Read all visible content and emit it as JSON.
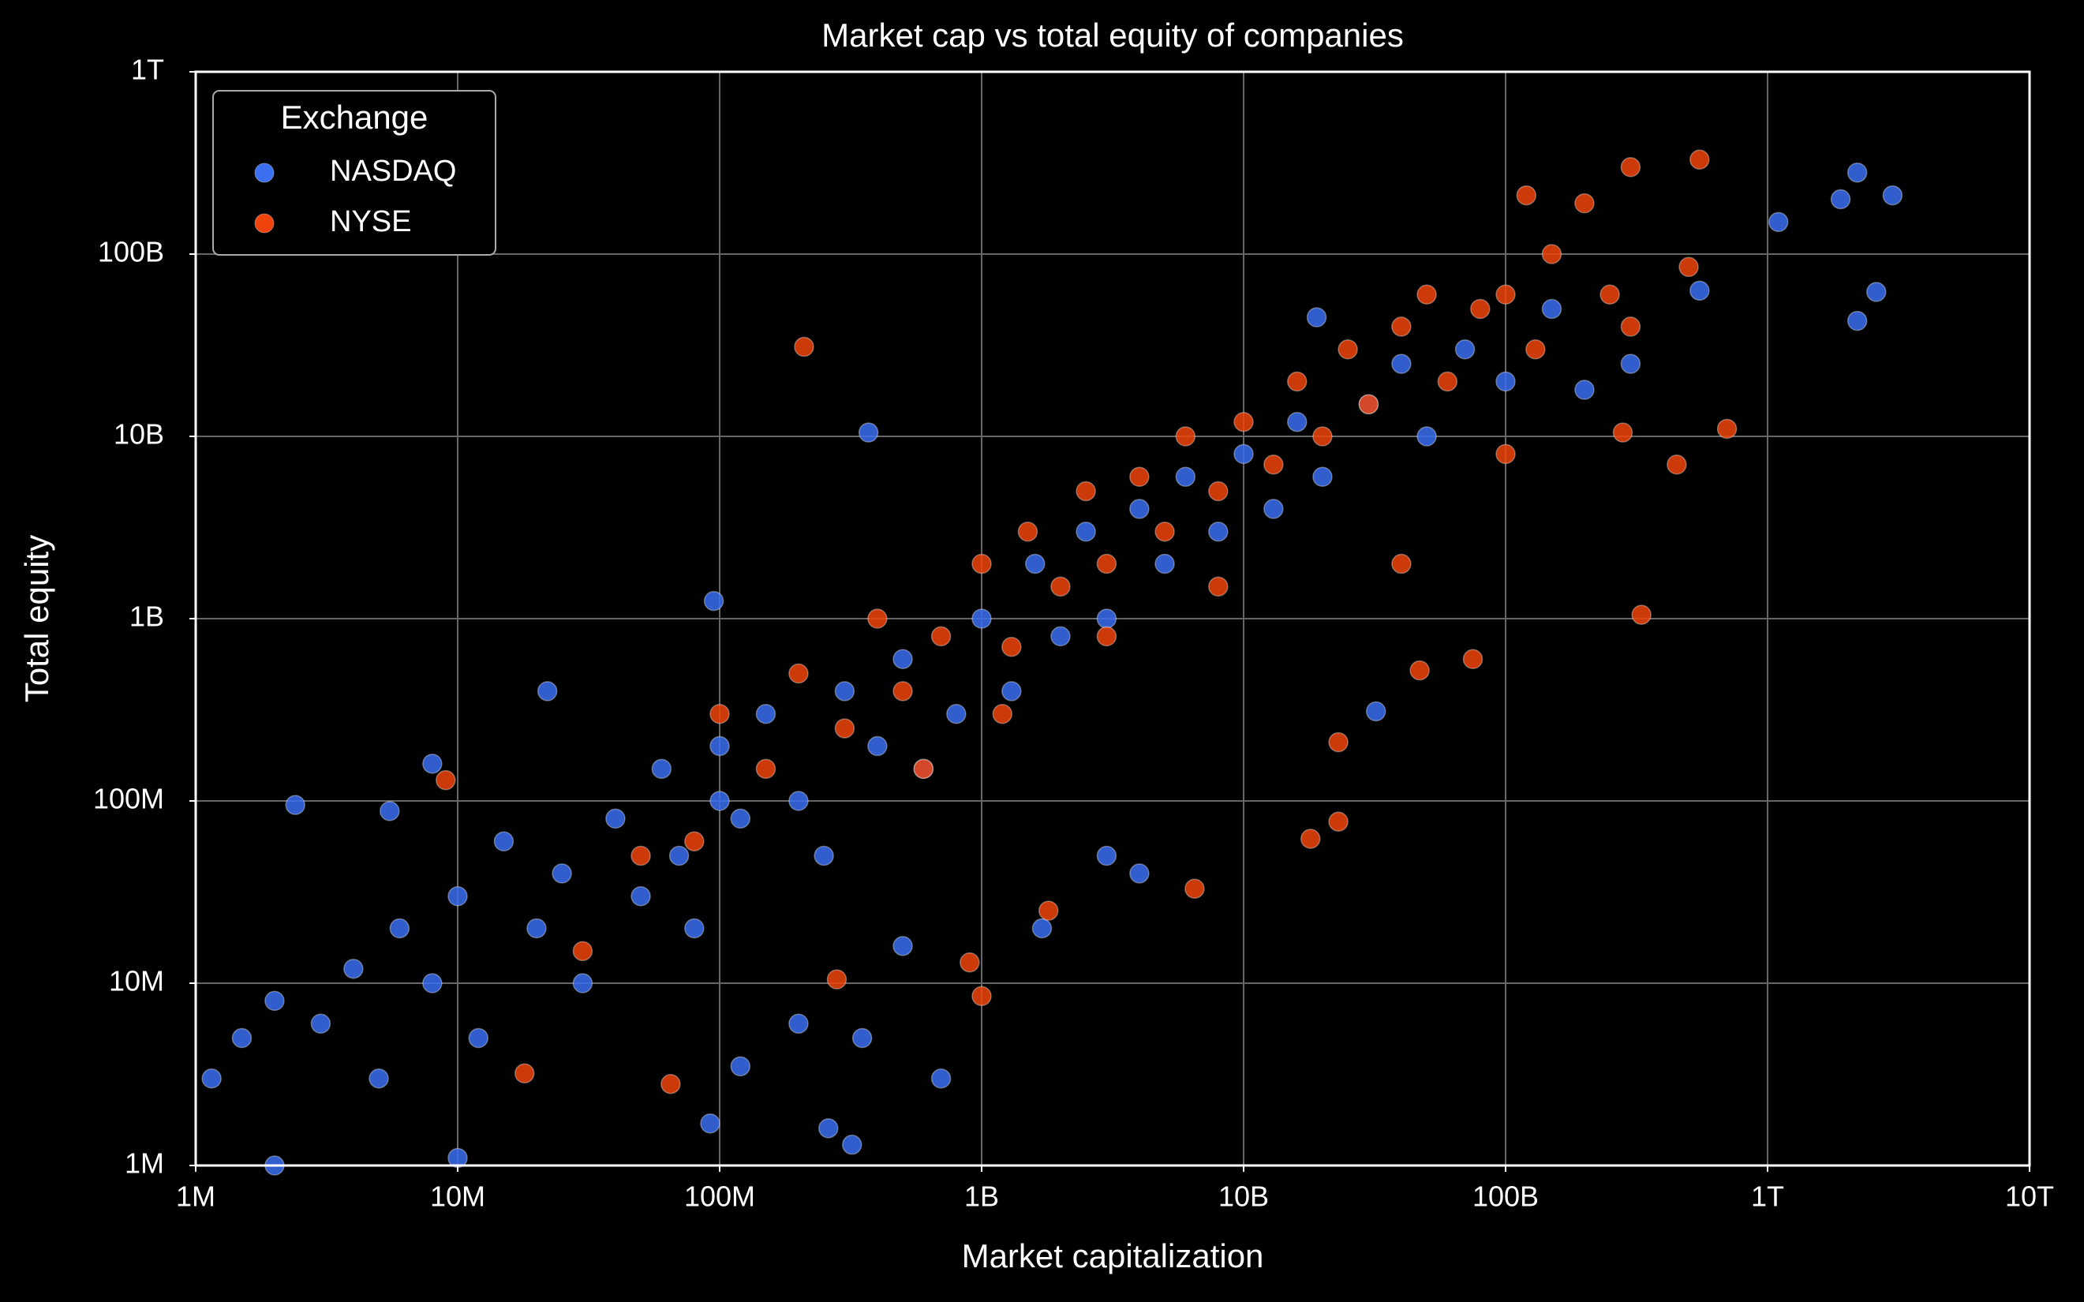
{
  "chart_data": {
    "type": "scatter",
    "title": "Market cap vs total equity of companies",
    "x_label": "Market capitalization",
    "y_label": "Total equity",
    "log_x": true,
    "log_y": true,
    "grid": true,
    "legend_title": "Exchange",
    "legend_position": "upper left",
    "xlim": [
      1000000.0,
      10000000000000.0
    ],
    "ylim": [
      1000000.0,
      1000000000000.0
    ],
    "xticks": [
      {
        "value": 1000000.0,
        "label": "1M"
      },
      {
        "value": 10000000.0,
        "label": "10M"
      },
      {
        "value": 100000000.0,
        "label": "100M"
      },
      {
        "value": 1000000000.0,
        "label": "1B"
      },
      {
        "value": 10000000000.0,
        "label": "10B"
      },
      {
        "value": 100000000000.0,
        "label": "100B"
      },
      {
        "value": 1000000000000.0,
        "label": "1T"
      },
      {
        "value": 10000000000000.0,
        "label": "10T"
      }
    ],
    "yticks": [
      {
        "value": 1000000.0,
        "label": "1M"
      },
      {
        "value": 10000000.0,
        "label": "10M"
      },
      {
        "value": 100000000.0,
        "label": "100M"
      },
      {
        "value": 1000000000.0,
        "label": "1B"
      },
      {
        "value": 10000000000.0,
        "label": "10B"
      },
      {
        "value": 100000000000.0,
        "label": "100B"
      },
      {
        "value": 1000000000000.0,
        "label": "1T"
      }
    ],
    "series": [
      {
        "name": "NASDAQ",
        "color": "#3a6ff0",
        "x": [
          2200000000000.0,
          3000000000000.0,
          1900000000000.0,
          1100000000000.0,
          2600000000000.0,
          2200000000000.0,
          550000000000.0,
          370000000.0,
          95000000.0,
          2400000.0,
          5500000.0,
          1150000.0,
          2000000.0,
          10000000.0,
          260000000.0,
          320000000.0,
          92000000.0,
          1700000000.0,
          19000000000.0,
          32000000000.0,
          1500000.0,
          2000000.0,
          3000000.0,
          4000000.0,
          5000000.0,
          6000000.0,
          8000000.0,
          10000000.0,
          12000000.0,
          15000000.0,
          20000000.0,
          25000000.0,
          30000000.0,
          40000000.0,
          50000000.0,
          60000000.0,
          70000000.0,
          80000000.0,
          100000000.0,
          120000000.0,
          150000000.0,
          200000000.0,
          250000000.0,
          300000000.0,
          400000000.0,
          500000000.0,
          600000000.0,
          800000000.0,
          1000000000.0,
          1300000000.0,
          1600000000.0,
          2000000000.0,
          2500000000.0,
          3000000000.0,
          4000000000.0,
          5000000000.0,
          6000000000.0,
          8000000000.0,
          10000000000.0,
          13000000000.0,
          16000000000.0,
          20000000000.0,
          30000000000.0,
          40000000000.0,
          50000000000.0,
          70000000000.0,
          100000000000.0,
          150000000000.0,
          200000000000.0,
          300000000000.0,
          4000000000.0,
          700000000.0,
          120000000.0,
          500000000.0,
          3000000000.0,
          22000000.0,
          8000000.0,
          350000000.0,
          200000000.0,
          100000000.0
        ],
        "y": [
          280000000000.0,
          210000000000.0,
          200000000000.0,
          150000000000.0,
          62000000000.0,
          43000000000.0,
          63000000000.0,
          10500000000.0,
          1250000000.0,
          95000000.0,
          88000000.0,
          3000000.0,
          1000000.0,
          1100000.0,
          1600000.0,
          1300000.0,
          1700000.0,
          20000000.0,
          45000000000.0,
          310000000.0,
          5000000.0,
          8000000.0,
          6000000.0,
          12000000.0,
          3000000.0,
          20000000.0,
          10000000.0,
          30000000.0,
          5000000.0,
          60000000.0,
          20000000.0,
          40000000.0,
          10000000.0,
          80000000.0,
          30000000.0,
          150000000.0,
          50000000.0,
          20000000.0,
          200000000.0,
          80000000.0,
          300000000.0,
          100000000.0,
          50000000.0,
          400000000.0,
          200000000.0,
          600000000.0,
          150000000.0,
          300000000.0,
          1000000000.0,
          400000000.0,
          2000000000.0,
          800000000.0,
          3000000000.0,
          1000000000.0,
          4000000000.0,
          2000000000.0,
          6000000000.0,
          3000000000.0,
          8000000000.0,
          4000000000.0,
          12000000000.0,
          6000000000.0,
          15000000000.0,
          25000000000.0,
          10000000000.0,
          30000000000.0,
          20000000000.0,
          50000000000.0,
          18000000000.0,
          25000000000.0,
          40000000.0,
          3000000.0,
          3500000.0,
          16000000.0,
          50000000.0,
          400000000.0,
          160000000.0,
          5000000.0,
          6000000.0,
          100000000.0
        ]
      },
      {
        "name": "NYSE",
        "color": "#f0440c",
        "x": [
          210000000.0,
          330000000000.0,
          700000000000.0,
          550000000000.0,
          300000000000.0,
          120000000000.0,
          450000000000.0,
          1000000000.0,
          900000000.0,
          18000000000.0,
          23000000000.0,
          6500000000.0,
          65000000.0,
          18000000.0,
          1800000000.0,
          75000000000.0,
          47000000000.0,
          23000000000.0,
          280000000.0,
          9000000.0,
          30000000.0,
          50000000.0,
          80000000.0,
          100000000.0,
          150000000.0,
          200000000.0,
          300000000.0,
          400000000.0,
          500000000.0,
          700000000.0,
          1000000000.0,
          1300000000.0,
          1500000000.0,
          2000000000.0,
          2500000000.0,
          3000000000.0,
          4000000000.0,
          5000000000.0,
          6000000000.0,
          8000000000.0,
          10000000000.0,
          13000000000.0,
          16000000000.0,
          20000000000.0,
          25000000000.0,
          30000000000.0,
          40000000000.0,
          50000000000.0,
          60000000000.0,
          80000000000.0,
          100000000000.0,
          130000000000.0,
          150000000000.0,
          200000000000.0,
          250000000000.0,
          300000000000.0,
          500000000000.0,
          1200000000.0,
          600000000.0,
          3000000000.0,
          8000000000.0,
          40000000000.0,
          100000000000.0,
          280000000000.0
        ],
        "y": [
          31000000000.0,
          1050000000.0,
          11000000000.0,
          330000000000.0,
          300000000000.0,
          210000000000.0,
          7000000000.0,
          8500000.0,
          13000000.0,
          62000000.0,
          77000000.0,
          33000000.0,
          2800000.0,
          3200000.0,
          25000000.0,
          600000000.0,
          520000000.0,
          210000000.0,
          10500000.0,
          130000000.0,
          15000000.0,
          50000000.0,
          60000000.0,
          300000000.0,
          150000000.0,
          500000000.0,
          250000000.0,
          1000000000.0,
          400000000.0,
          800000000.0,
          2000000000.0,
          700000000.0,
          3000000000.0,
          1500000000.0,
          5000000000.0,
          2000000000.0,
          6000000000.0,
          3000000000.0,
          10000000000.0,
          5000000000.0,
          12000000000.0,
          7000000000.0,
          20000000000.0,
          10000000000.0,
          30000000000.0,
          15000000000.0,
          40000000000.0,
          60000000000.0,
          20000000000.0,
          50000000000.0,
          60000000000.0,
          30000000000.0,
          100000000000.0,
          190000000000.0,
          60000000000.0,
          40000000000.0,
          85000000000.0,
          300000000.0,
          150000000.0,
          800000000.0,
          1500000000.0,
          2000000000.0,
          8000000000.0,
          10500000000.0
        ]
      }
    ]
  }
}
